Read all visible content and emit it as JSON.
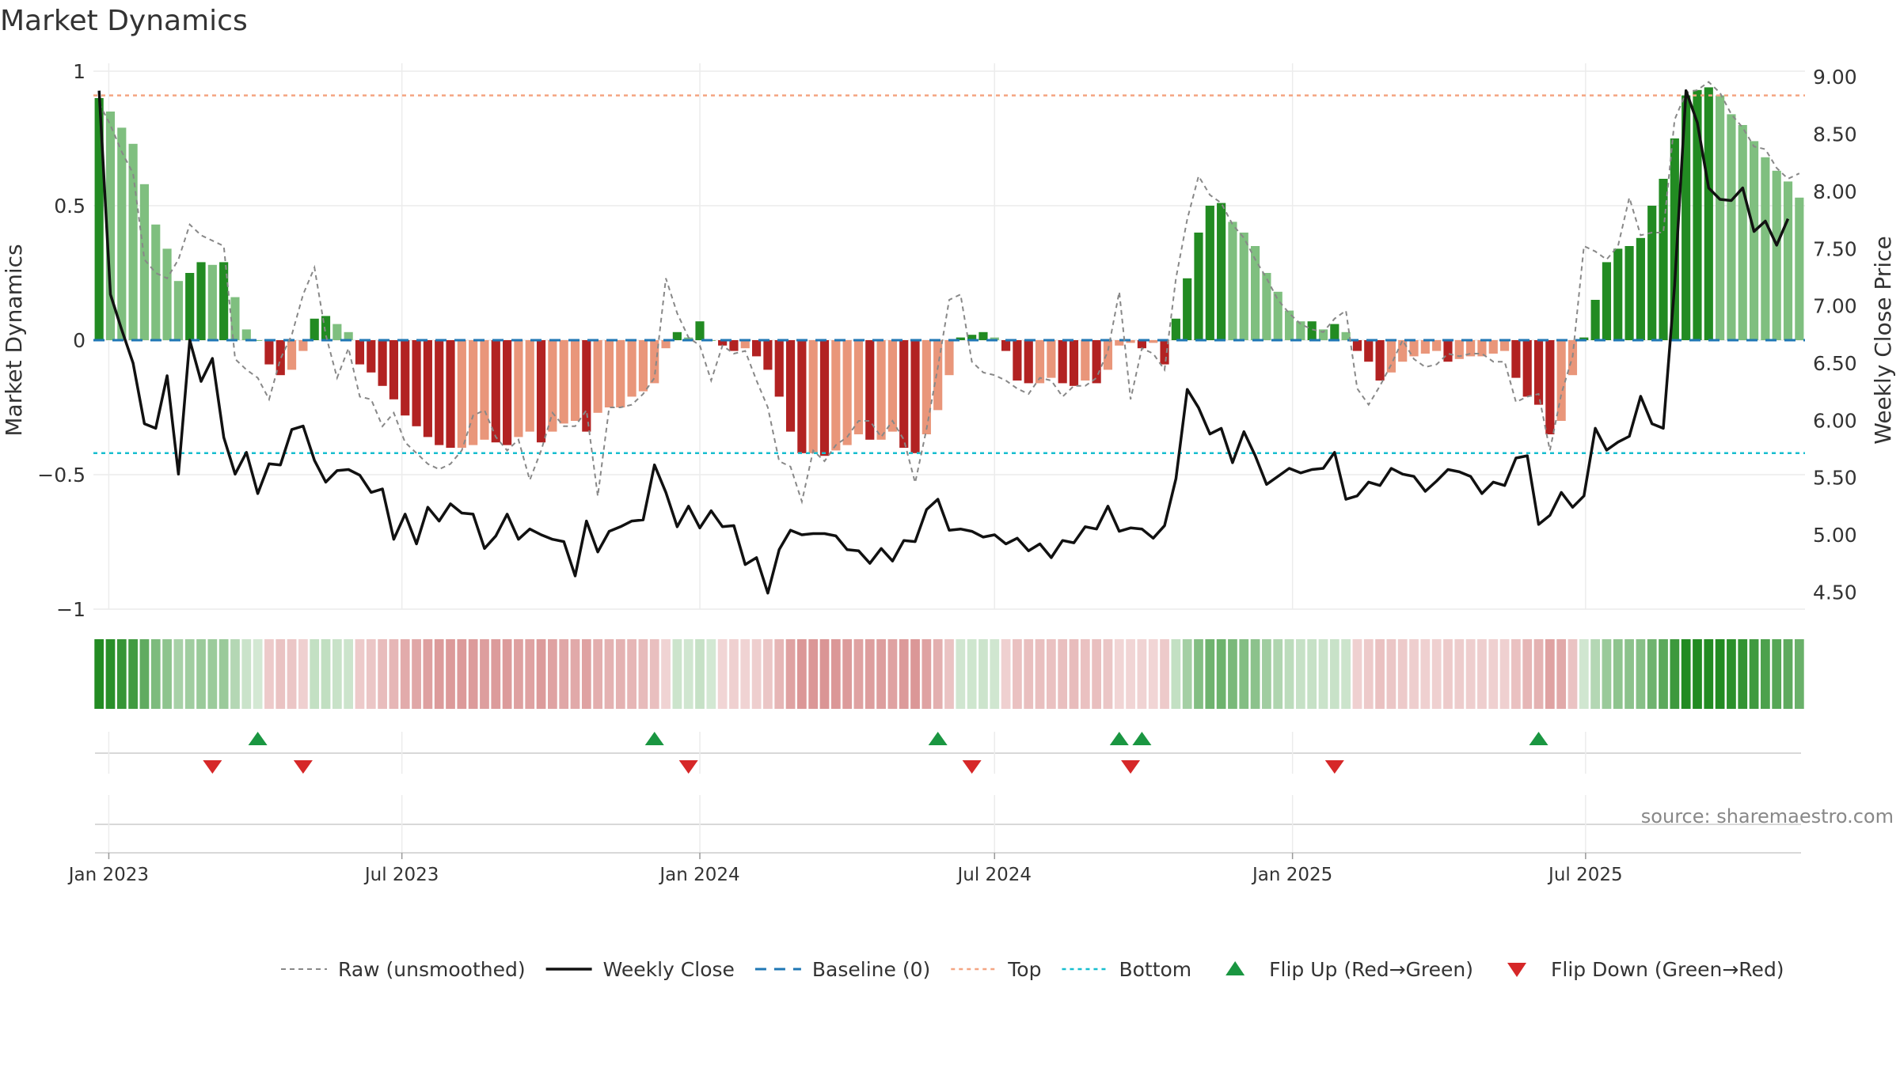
{
  "chart_data": {
    "type": "bar",
    "title": "Market Dynamics",
    "ylabel": "Market Dynamics",
    "y2label": "Weekly Close Price",
    "ylim": [
      -1,
      1
    ],
    "y2lim": [
      4.35,
      9.05
    ],
    "yticks": [
      1,
      0.5,
      0,
      -0.5,
      -1
    ],
    "ytick_labels": [
      "1",
      "0.5",
      "0",
      "−0.5",
      "−1"
    ],
    "y2ticks": [
      9.0,
      8.5,
      8.0,
      7.5,
      7.0,
      6.5,
      6.0,
      5.5,
      5.0,
      4.5
    ],
    "y2tick_labels": [
      "9.00",
      "8.50",
      "8.00",
      "7.50",
      "7.00",
      "6.50",
      "6.00",
      "5.50",
      "5.00",
      "4.50"
    ],
    "xticks": [
      "2023-01-01",
      "2023-07-01",
      "2024-01-01",
      "2024-07-01",
      "2025-01-01",
      "2025-07-01"
    ],
    "xtick_labels": [
      "Jan 2023",
      "Jul 2023",
      "Jan 2024",
      "Jul 2024",
      "Jan 2025",
      "Jul 2025"
    ],
    "start_date": "2022-12-26",
    "top_line": 0.91,
    "bottom_line": -0.42,
    "baseline": 0,
    "source": "source: sharemaestro.com",
    "colors": {
      "strong_green": "#228b22",
      "light_green": "#7fbf7f",
      "strong_red": "#b22222",
      "light_red": "#e9967a",
      "close": "#111111",
      "raw": "#888888",
      "baseline": "#1f77b4",
      "top": "#f4a582",
      "bottom": "#17becf",
      "flip_up": "#1a9641",
      "flip_down": "#d62728"
    },
    "smoothed": [
      0.9,
      0.85,
      0.79,
      0.73,
      0.58,
      0.43,
      0.34,
      0.22,
      0.25,
      0.29,
      0.28,
      0.29,
      0.16,
      0.04,
      0.0,
      -0.09,
      -0.13,
      -0.11,
      -0.04,
      0.08,
      0.09,
      0.06,
      0.03,
      -0.09,
      -0.12,
      -0.17,
      -0.22,
      -0.28,
      -0.32,
      -0.36,
      -0.39,
      -0.4,
      -0.4,
      -0.39,
      -0.37,
      -0.38,
      -0.39,
      -0.36,
      -0.34,
      -0.38,
      -0.34,
      -0.31,
      -0.3,
      -0.34,
      -0.27,
      -0.25,
      -0.25,
      -0.21,
      -0.19,
      -0.16,
      -0.03,
      0.03,
      0.01,
      0.07,
      0.0,
      -0.02,
      -0.04,
      -0.03,
      -0.06,
      -0.11,
      -0.21,
      -0.34,
      -0.42,
      -0.42,
      -0.43,
      -0.41,
      -0.39,
      -0.35,
      -0.37,
      -0.37,
      -0.34,
      -0.4,
      -0.42,
      -0.35,
      -0.26,
      -0.13,
      0.01,
      0.02,
      0.03,
      0.01,
      -0.04,
      -0.15,
      -0.16,
      -0.16,
      -0.14,
      -0.16,
      -0.17,
      -0.15,
      -0.16,
      -0.11,
      -0.02,
      -0.01,
      -0.03,
      -0.01,
      -0.09,
      0.08,
      0.23,
      0.4,
      0.5,
      0.51,
      0.44,
      0.4,
      0.35,
      0.25,
      0.18,
      0.11,
      0.07,
      0.07,
      0.04,
      0.06,
      0.03,
      -0.04,
      -0.08,
      -0.15,
      -0.12,
      -0.08,
      -0.06,
      -0.05,
      -0.04,
      -0.08,
      -0.07,
      -0.06,
      -0.06,
      -0.05,
      -0.04,
      -0.14,
      -0.21,
      -0.24,
      -0.35,
      -0.3,
      -0.13,
      0.01,
      0.15,
      0.29,
      0.34,
      0.35,
      0.38,
      0.5,
      0.6,
      0.75,
      0.91,
      0.93,
      0.94,
      0.91,
      0.84,
      0.8,
      0.74,
      0.68,
      0.63,
      0.59,
      0.53
    ],
    "raw": [
      0.88,
      0.8,
      0.7,
      0.62,
      0.3,
      0.25,
      0.23,
      0.3,
      0.43,
      0.39,
      0.37,
      0.35,
      -0.07,
      -0.11,
      -0.14,
      -0.22,
      -0.07,
      0.02,
      0.17,
      0.27,
      0.02,
      -0.14,
      -0.03,
      -0.21,
      -0.22,
      -0.32,
      -0.27,
      -0.38,
      -0.42,
      -0.46,
      -0.48,
      -0.46,
      -0.41,
      -0.28,
      -0.26,
      -0.36,
      -0.41,
      -0.37,
      -0.52,
      -0.41,
      -0.27,
      -0.32,
      -0.32,
      -0.26,
      -0.58,
      -0.25,
      -0.25,
      -0.24,
      -0.2,
      -0.14,
      0.23,
      0.1,
      0.01,
      -0.02,
      -0.15,
      -0.02,
      -0.05,
      -0.04,
      -0.15,
      -0.25,
      -0.45,
      -0.47,
      -0.6,
      -0.41,
      -0.45,
      -0.39,
      -0.36,
      -0.3,
      -0.3,
      -0.36,
      -0.3,
      -0.37,
      -0.53,
      -0.33,
      -0.1,
      0.15,
      0.17,
      -0.08,
      -0.12,
      -0.13,
      -0.15,
      -0.18,
      -0.2,
      -0.14,
      -0.15,
      -0.21,
      -0.17,
      -0.17,
      -0.14,
      -0.04,
      0.18,
      -0.22,
      -0.03,
      -0.05,
      -0.11,
      0.23,
      0.45,
      0.61,
      0.54,
      0.51,
      0.43,
      0.38,
      0.3,
      0.23,
      0.15,
      0.1,
      0.06,
      0.04,
      0.03,
      0.08,
      0.11,
      -0.18,
      -0.24,
      -0.17,
      -0.09,
      0.0,
      -0.07,
      -0.1,
      -0.09,
      -0.05,
      -0.06,
      -0.05,
      -0.05,
      -0.08,
      -0.08,
      -0.23,
      -0.21,
      -0.2,
      -0.41,
      -0.2,
      -0.06,
      0.35,
      0.33,
      0.3,
      0.35,
      0.53,
      0.39,
      0.4,
      0.4,
      0.82,
      0.92,
      0.93,
      0.96,
      0.92,
      0.84,
      0.79,
      0.72,
      0.71,
      0.64,
      0.6,
      0.62
    ],
    "close": [
      8.88,
      7.1,
      6.79,
      6.5,
      5.97,
      5.93,
      6.39,
      5.53,
      6.7,
      6.34,
      6.54,
      5.85,
      5.53,
      5.72,
      5.36,
      5.62,
      5.61,
      5.92,
      5.95,
      5.65,
      5.46,
      5.56,
      5.57,
      5.52,
      5.37,
      5.4,
      4.96,
      5.18,
      4.92,
      5.24,
      5.12,
      5.27,
      5.19,
      5.18,
      4.88,
      4.99,
      5.18,
      4.96,
      5.05,
      5.0,
      4.96,
      4.94,
      4.64,
      5.12,
      4.85,
      5.03,
      5.07,
      5.12,
      5.13,
      5.61,
      5.37,
      5.07,
      5.25,
      5.06,
      5.21,
      5.07,
      5.08,
      4.74,
      4.8,
      4.49,
      4.87,
      5.04,
      5.0,
      5.01,
      5.01,
      4.99,
      4.87,
      4.86,
      4.75,
      4.88,
      4.77,
      4.95,
      4.94,
      5.22,
      5.31,
      5.04,
      5.05,
      5.03,
      4.98,
      5.0,
      4.92,
      4.97,
      4.86,
      4.92,
      4.8,
      4.95,
      4.93,
      5.07,
      5.05,
      5.25,
      5.03,
      5.06,
      5.05,
      4.97,
      5.08,
      5.49,
      6.27,
      6.11,
      5.88,
      5.93,
      5.63,
      5.9,
      5.69,
      5.44,
      5.51,
      5.58,
      5.54,
      5.57,
      5.58,
      5.72,
      5.31,
      5.34,
      5.46,
      5.43,
      5.58,
      5.53,
      5.51,
      5.38,
      5.47,
      5.57,
      5.55,
      5.51,
      5.36,
      5.46,
      5.43,
      5.67,
      5.69,
      5.09,
      5.17,
      5.37,
      5.24,
      5.34,
      5.93,
      5.74,
      5.81,
      5.86,
      6.21,
      5.97,
      5.93,
      7.18,
      8.88,
      8.6,
      8.03,
      7.93,
      7.92,
      8.03,
      7.65,
      7.74,
      7.53,
      7.76
    ],
    "flip_up_dates": [
      "2023-04-03",
      "2023-12-04",
      "2024-05-27",
      "2024-09-16",
      "2024-09-30",
      "2025-06-02"
    ],
    "flip_down_dates": [
      "2023-03-06",
      "2023-05-01",
      "2023-12-25",
      "2024-06-17",
      "2024-09-23",
      "2025-01-27"
    ]
  },
  "legend": [
    {
      "label": "Raw (unsmoothed)",
      "icon": "dashed-gray-line"
    },
    {
      "label": "Weekly Close",
      "icon": "solid-black-line"
    },
    {
      "label": "Baseline (0)",
      "icon": "dashed-blue-line"
    },
    {
      "label": "Top",
      "icon": "dotted-orange-line"
    },
    {
      "label": "Bottom",
      "icon": "dotted-cyan-line"
    },
    {
      "label": "Flip Up (Red→Green)",
      "icon": "green-up-triangle"
    },
    {
      "label": "Flip Down (Green→Red)",
      "icon": "red-down-triangle"
    }
  ]
}
